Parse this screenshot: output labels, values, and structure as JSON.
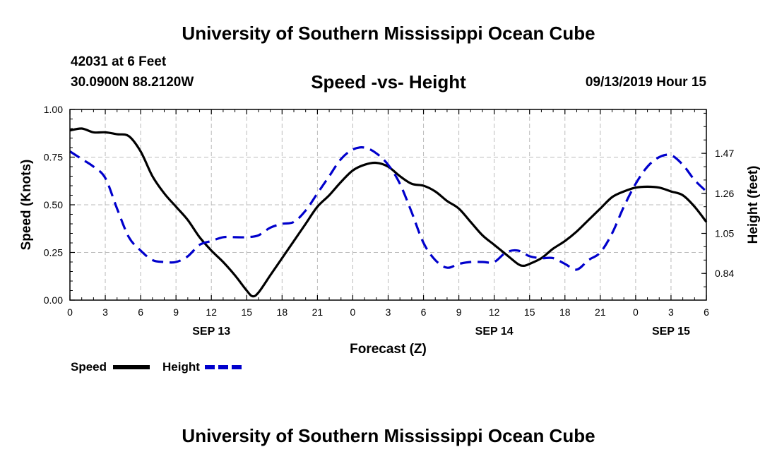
{
  "header": {
    "title_top": "University of Southern Mississippi Ocean Cube",
    "station_line": "42031 at 6 Feet",
    "location_line": "30.0900N 88.2120W",
    "chart_title": "Speed -vs- Height",
    "date_line": "09/13/2019 Hour 15"
  },
  "footer": {
    "title_bottom": "University of Southern Mississippi Ocean Cube"
  },
  "colors": {
    "speed": "#000000",
    "height": "#0000cc",
    "grid": "#bbbbbb"
  },
  "chart_data": {
    "type": "line",
    "title": "Speed -vs- Height",
    "xlabel": "Forecast (Z)",
    "ylabel": "Speed (Knots)",
    "y2label": "Height (feet)",
    "grid": true,
    "legend_position": "bottom-left",
    "x_range": [
      0,
      54
    ],
    "x_ticks": [
      0,
      3,
      6,
      9,
      12,
      15,
      18,
      21,
      24,
      27,
      30,
      33,
      36,
      39,
      42,
      45,
      48,
      51,
      54
    ],
    "x_tick_labels": [
      "0",
      "3",
      "6",
      "9",
      "12",
      "15",
      "18",
      "21",
      "0",
      "3",
      "6",
      "9",
      "12",
      "15",
      "18",
      "21",
      "0",
      "3",
      "6"
    ],
    "date_labels": [
      {
        "x": 12,
        "label": "SEP 13"
      },
      {
        "x": 36,
        "label": "SEP 14"
      },
      {
        "x": 51,
        "label": "SEP 15"
      }
    ],
    "y_range": [
      0,
      1.0
    ],
    "y_ticks": [
      0,
      0.25,
      0.5,
      0.75,
      1.0
    ],
    "y_tick_labels": [
      "0.00",
      "0.25",
      "0.50",
      "0.75",
      "1.00"
    ],
    "y2_range": [
      0.7,
      1.7
    ],
    "y2_ticks": [
      0.84,
      1.05,
      1.26,
      1.47
    ],
    "y2_tick_labels": [
      "0.84",
      "1.05",
      "1.26",
      "1.47"
    ],
    "series": [
      {
        "name": "Speed",
        "axis": "left",
        "style": "solid",
        "x": [
          0,
          1,
          2,
          3,
          4,
          5,
          6,
          7,
          8,
          9,
          10,
          11,
          12,
          13,
          14,
          15,
          15.5,
          16,
          17,
          18,
          19,
          20,
          21,
          22,
          23,
          24,
          25,
          26,
          27,
          28,
          29,
          30,
          31,
          32,
          33,
          34,
          35,
          36,
          37,
          38,
          38.5,
          39,
          40,
          41,
          42,
          43,
          44,
          45,
          46,
          47,
          48,
          49,
          50,
          51,
          52,
          53,
          54
        ],
        "values": [
          0.89,
          0.9,
          0.88,
          0.88,
          0.87,
          0.86,
          0.78,
          0.65,
          0.56,
          0.49,
          0.42,
          0.33,
          0.26,
          0.2,
          0.13,
          0.05,
          0.02,
          0.04,
          0.13,
          0.22,
          0.31,
          0.4,
          0.49,
          0.55,
          0.62,
          0.68,
          0.71,
          0.72,
          0.7,
          0.65,
          0.61,
          0.6,
          0.57,
          0.52,
          0.48,
          0.41,
          0.34,
          0.29,
          0.24,
          0.19,
          0.18,
          0.19,
          0.22,
          0.27,
          0.31,
          0.36,
          0.42,
          0.48,
          0.54,
          0.57,
          0.59,
          0.595,
          0.59,
          0.57,
          0.55,
          0.49,
          0.41
        ]
      },
      {
        "name": "Height",
        "axis": "right",
        "style": "dashed",
        "x": [
          0,
          1,
          2,
          3,
          4,
          5,
          6,
          7,
          8,
          9,
          10,
          11,
          12,
          13,
          14,
          15,
          16,
          17,
          18,
          19,
          20,
          21,
          22,
          23,
          24,
          25,
          26,
          27,
          28,
          29,
          30,
          31,
          32,
          33,
          34,
          35,
          36,
          37,
          38,
          39,
          40,
          41,
          42,
          43,
          44,
          45,
          46,
          47,
          48,
          49,
          50,
          51,
          52,
          53,
          54
        ],
        "values": [
          1.48,
          1.44,
          1.4,
          1.34,
          1.18,
          1.03,
          0.96,
          0.91,
          0.9,
          0.9,
          0.93,
          0.99,
          1.01,
          1.03,
          1.03,
          1.03,
          1.04,
          1.08,
          1.1,
          1.11,
          1.17,
          1.26,
          1.35,
          1.44,
          1.49,
          1.5,
          1.47,
          1.41,
          1.31,
          1.16,
          1.0,
          0.91,
          0.87,
          0.89,
          0.9,
          0.9,
          0.9,
          0.95,
          0.96,
          0.93,
          0.92,
          0.92,
          0.89,
          0.86,
          0.91,
          0.95,
          1.05,
          1.19,
          1.31,
          1.4,
          1.45,
          1.46,
          1.41,
          1.33,
          1.27
        ]
      }
    ]
  }
}
